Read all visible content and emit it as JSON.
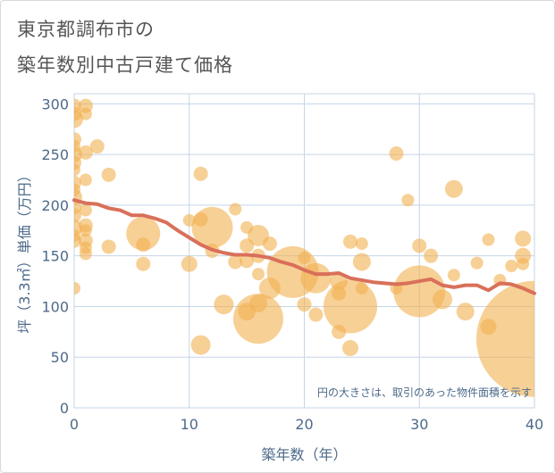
{
  "title_line1": "東京都調布市の",
  "title_line2": "築年数別中古戸建て価格",
  "chart_data": {
    "type": "scatter",
    "xlabel": "築年数（年）",
    "ylabel": "坪（3.3㎡）単価（万円）",
    "xlim": [
      0,
      40
    ],
    "ylim": [
      0,
      310
    ],
    "xticks": [
      0,
      10,
      20,
      30,
      40
    ],
    "yticks": [
      0,
      50,
      100,
      150,
      200,
      250,
      300
    ],
    "grid": true,
    "note": "円の大きさは、取引のあった物件面積を示す",
    "colors": {
      "bubble": "#f2b150",
      "line": "#d9705a",
      "grid": "#c5d5e6",
      "text": "#4d6a8a"
    },
    "bubbles": [
      {
        "x": 0,
        "y": 298,
        "r": 8
      },
      {
        "x": 0,
        "y": 290,
        "r": 8
      },
      {
        "x": 0,
        "y": 285,
        "r": 10
      },
      {
        "x": 0,
        "y": 265,
        "r": 8
      },
      {
        "x": 0,
        "y": 258,
        "r": 7
      },
      {
        "x": 0,
        "y": 250,
        "r": 9
      },
      {
        "x": 0,
        "y": 242,
        "r": 8
      },
      {
        "x": 0,
        "y": 235,
        "r": 7
      },
      {
        "x": 0,
        "y": 222,
        "r": 8
      },
      {
        "x": 0,
        "y": 215,
        "r": 7
      },
      {
        "x": 0,
        "y": 208,
        "r": 9
      },
      {
        "x": 0,
        "y": 198,
        "r": 8
      },
      {
        "x": 0,
        "y": 190,
        "r": 8
      },
      {
        "x": 0,
        "y": 178,
        "r": 9
      },
      {
        "x": 0,
        "y": 170,
        "r": 7
      },
      {
        "x": 0,
        "y": 165,
        "r": 8
      },
      {
        "x": 0,
        "y": 118,
        "r": 7
      },
      {
        "x": 1,
        "y": 298,
        "r": 8
      },
      {
        "x": 1,
        "y": 290,
        "r": 7
      },
      {
        "x": 1,
        "y": 252,
        "r": 8
      },
      {
        "x": 1,
        "y": 225,
        "r": 7
      },
      {
        "x": 1,
        "y": 195,
        "r": 7
      },
      {
        "x": 1,
        "y": 180,
        "r": 8
      },
      {
        "x": 1,
        "y": 175,
        "r": 7
      },
      {
        "x": 1,
        "y": 165,
        "r": 8
      },
      {
        "x": 1,
        "y": 158,
        "r": 7
      },
      {
        "x": 1,
        "y": 152,
        "r": 7
      },
      {
        "x": 2,
        "y": 258,
        "r": 8
      },
      {
        "x": 3,
        "y": 230,
        "r": 8
      },
      {
        "x": 3,
        "y": 159,
        "r": 8
      },
      {
        "x": 6,
        "y": 172,
        "r": 19
      },
      {
        "x": 6,
        "y": 161,
        "r": 8
      },
      {
        "x": 6,
        "y": 142,
        "r": 8
      },
      {
        "x": 10,
        "y": 142,
        "r": 9
      },
      {
        "x": 10,
        "y": 185,
        "r": 7
      },
      {
        "x": 11,
        "y": 231,
        "r": 8
      },
      {
        "x": 11,
        "y": 186,
        "r": 8
      },
      {
        "x": 11,
        "y": 62,
        "r": 11
      },
      {
        "x": 12,
        "y": 178,
        "r": 23
      },
      {
        "x": 12,
        "y": 155,
        "r": 8
      },
      {
        "x": 13,
        "y": 102,
        "r": 11
      },
      {
        "x": 14,
        "y": 196,
        "r": 7
      },
      {
        "x": 14,
        "y": 144,
        "r": 8
      },
      {
        "x": 15,
        "y": 178,
        "r": 7
      },
      {
        "x": 15,
        "y": 160,
        "r": 8
      },
      {
        "x": 15,
        "y": 145,
        "r": 8
      },
      {
        "x": 15,
        "y": 95,
        "r": 10
      },
      {
        "x": 16,
        "y": 170,
        "r": 12
      },
      {
        "x": 16,
        "y": 150,
        "r": 8
      },
      {
        "x": 16,
        "y": 132,
        "r": 7
      },
      {
        "x": 16,
        "y": 103,
        "r": 10
      },
      {
        "x": 16,
        "y": 88,
        "r": 28
      },
      {
        "x": 17,
        "y": 162,
        "r": 8
      },
      {
        "x": 17,
        "y": 118,
        "r": 12
      },
      {
        "x": 19,
        "y": 134,
        "r": 29
      },
      {
        "x": 20,
        "y": 102,
        "r": 8
      },
      {
        "x": 20,
        "y": 148,
        "r": 7
      },
      {
        "x": 21,
        "y": 128,
        "r": 17
      },
      {
        "x": 21,
        "y": 92,
        "r": 8
      },
      {
        "x": 23,
        "y": 125,
        "r": 10
      },
      {
        "x": 23,
        "y": 113,
        "r": 8
      },
      {
        "x": 23,
        "y": 75,
        "r": 8
      },
      {
        "x": 24,
        "y": 100,
        "r": 30
      },
      {
        "x": 24,
        "y": 164,
        "r": 8
      },
      {
        "x": 24,
        "y": 59,
        "r": 9
      },
      {
        "x": 25,
        "y": 162,
        "r": 7
      },
      {
        "x": 25,
        "y": 144,
        "r": 10
      },
      {
        "x": 25,
        "y": 118,
        "r": 7
      },
      {
        "x": 28,
        "y": 251,
        "r": 8
      },
      {
        "x": 28,
        "y": 118,
        "r": 7
      },
      {
        "x": 29,
        "y": 205,
        "r": 7
      },
      {
        "x": 30,
        "y": 160,
        "r": 8
      },
      {
        "x": 30,
        "y": 115,
        "r": 29
      },
      {
        "x": 31,
        "y": 150,
        "r": 8
      },
      {
        "x": 32,
        "y": 107,
        "r": 11
      },
      {
        "x": 33,
        "y": 216,
        "r": 10
      },
      {
        "x": 33,
        "y": 131,
        "r": 7
      },
      {
        "x": 34,
        "y": 95,
        "r": 10
      },
      {
        "x": 35,
        "y": 143,
        "r": 7
      },
      {
        "x": 36,
        "y": 166,
        "r": 7
      },
      {
        "x": 36,
        "y": 80,
        "r": 9
      },
      {
        "x": 37,
        "y": 126,
        "r": 7
      },
      {
        "x": 38,
        "y": 140,
        "r": 7
      },
      {
        "x": 39,
        "y": 167,
        "r": 9
      },
      {
        "x": 39,
        "y": 150,
        "r": 9
      },
      {
        "x": 39,
        "y": 142,
        "r": 7
      },
      {
        "x": 40,
        "y": 68,
        "r": 65
      }
    ],
    "trend": {
      "x": [
        0,
        1,
        2,
        3,
        4,
        5,
        6,
        7,
        8,
        9,
        10,
        11,
        12,
        13,
        14,
        15,
        16,
        17,
        18,
        19,
        20,
        21,
        22,
        23,
        24,
        25,
        26,
        27,
        28,
        29,
        30,
        31,
        32,
        33,
        34,
        35,
        36,
        37,
        38,
        39,
        40
      ],
      "y": [
        205,
        202,
        201,
        197,
        195,
        190,
        190,
        187,
        183,
        175,
        168,
        161,
        156,
        153,
        151,
        151,
        150,
        148,
        144,
        141,
        136,
        132,
        132,
        133,
        128,
        126,
        124,
        123,
        122,
        123,
        125,
        127,
        121,
        119,
        121,
        121,
        116,
        123,
        122,
        118,
        113
      ]
    }
  }
}
